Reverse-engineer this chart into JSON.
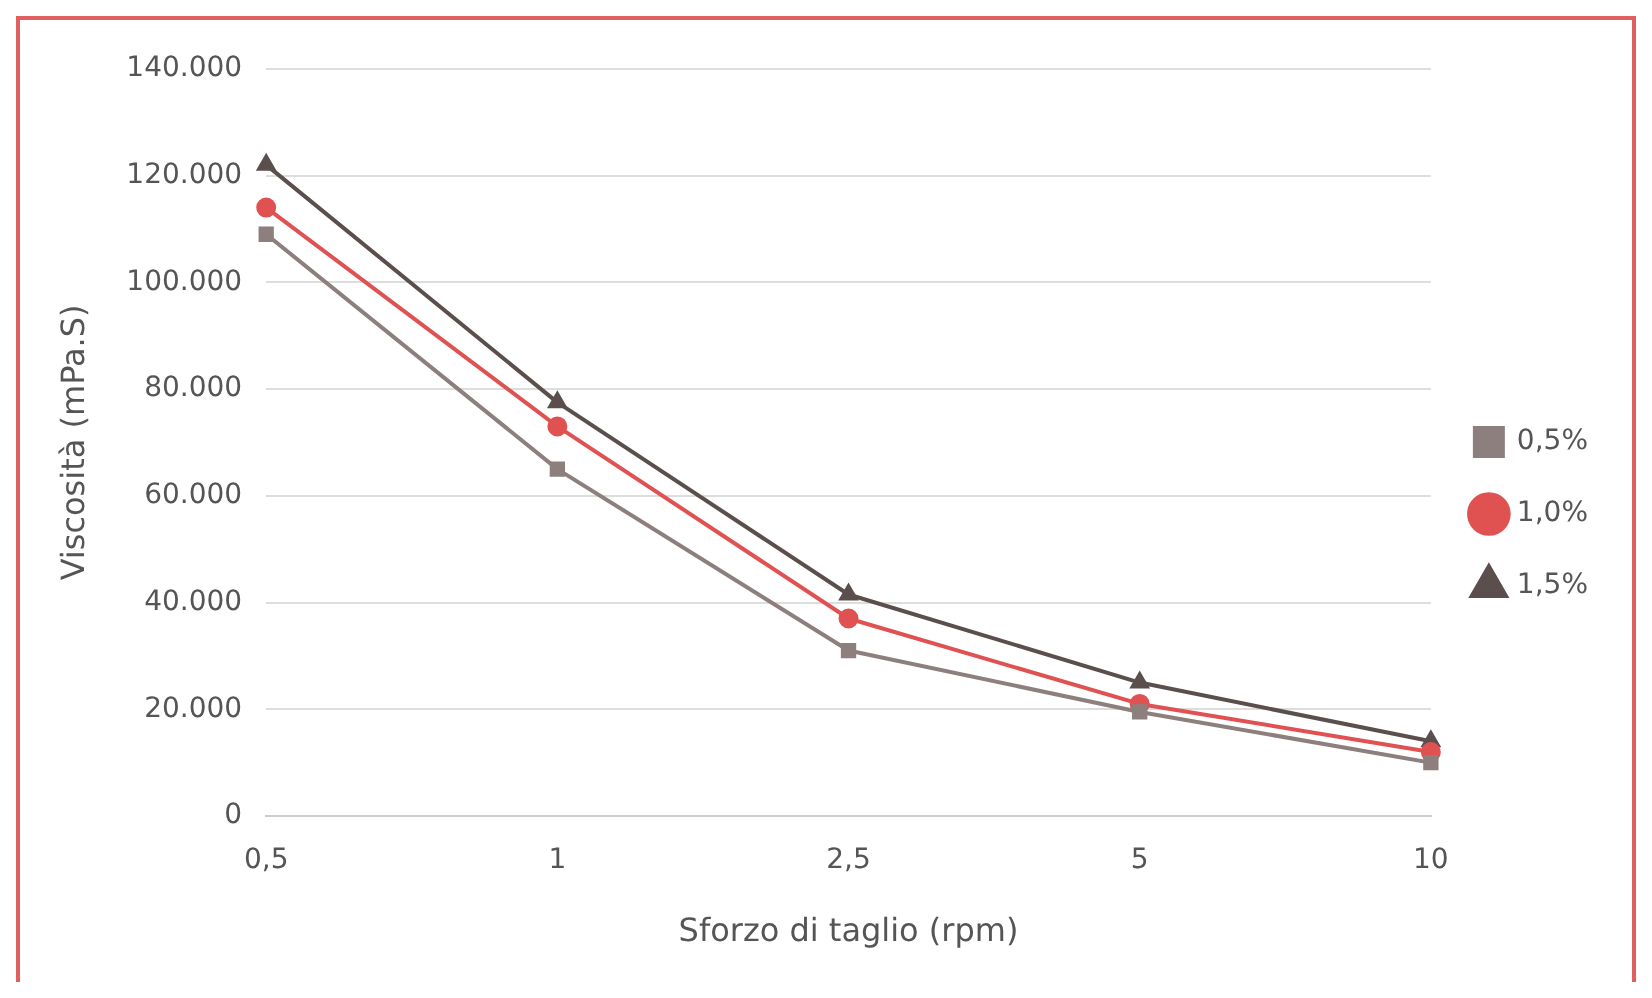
{
  "chart_data": {
    "type": "line",
    "xlabel": "Sforzo di taglio (rpm)",
    "ylabel": "Viscosità (mPa.S)",
    "categories": [
      "0,5",
      "1",
      "2,5",
      "5",
      "10"
    ],
    "series": [
      {
        "name": "0,5%",
        "color": "#8c7f7d",
        "marker": "square",
        "values": [
          109000,
          65000,
          31000,
          19500,
          10000
        ]
      },
      {
        "name": "1,0%",
        "color": "#e05252",
        "marker": "circle",
        "values": [
          114000,
          73000,
          37000,
          21000,
          12000
        ]
      },
      {
        "name": "1,5%",
        "color": "#5a4f4c",
        "marker": "triangle",
        "values": [
          122000,
          77500,
          41500,
          25000,
          14000
        ]
      }
    ],
    "ylim": [
      0,
      140000
    ],
    "yticks": [
      {
        "value": 0,
        "label": "0"
      },
      {
        "value": 20000,
        "label": "20.000"
      },
      {
        "value": 40000,
        "label": "40.000"
      },
      {
        "value": 60000,
        "label": "60.000"
      },
      {
        "value": 80000,
        "label": "80.000"
      },
      {
        "value": 100000,
        "label": "100.000"
      },
      {
        "value": 120000,
        "label": "120.000"
      },
      {
        "value": 140000,
        "label": "140.000"
      }
    ],
    "grid": "y",
    "legend": "right",
    "line_style": "solid"
  }
}
